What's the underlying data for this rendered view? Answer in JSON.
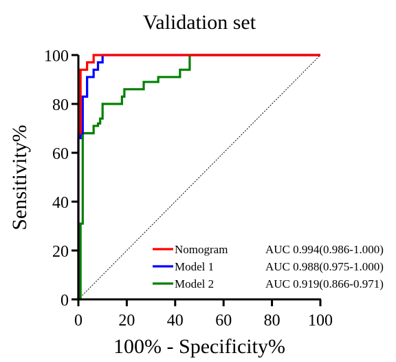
{
  "chart_data": {
    "type": "line",
    "title": "Validation set",
    "xlabel": "100% - Specificity%",
    "ylabel": "Sensitivity%",
    "xlim": [
      0,
      100
    ],
    "ylim": [
      0,
      100
    ],
    "xticks": [
      0,
      20,
      40,
      60,
      80,
      100
    ],
    "yticks": [
      0,
      20,
      40,
      60,
      80,
      100
    ],
    "grid": false,
    "legend_position": "bottom-right",
    "diagonal_reference": true,
    "series": [
      {
        "name": "Nomogram",
        "auc_label": "AUC 0.994(0.986-1.000)",
        "color": "#ff0000",
        "x": [
          0,
          0,
          0.9,
          0.9,
          1.8,
          1.8,
          3.6,
          3.6,
          6.3,
          6.3,
          100
        ],
        "y": [
          0,
          68,
          68,
          94,
          94,
          94,
          94,
          97,
          97,
          100,
          100
        ]
      },
      {
        "name": "Model 1",
        "auc_label": "AUC 0.988(0.975-1.000)",
        "color": "#0000ff",
        "x": [
          0,
          0,
          0.9,
          0.9,
          1.8,
          1.8,
          3.6,
          3.6,
          6.3,
          6.3,
          8.1,
          8.1,
          10,
          10,
          100
        ],
        "y": [
          0,
          66,
          66,
          68,
          68,
          83,
          83,
          91,
          91,
          94,
          94,
          97,
          97,
          100,
          100
        ]
      },
      {
        "name": "Model 2",
        "auc_label": "AUC 0.919(0.866-0.971)",
        "color": "#008000",
        "x": [
          0,
          0.9,
          0.9,
          1.8,
          1.8,
          6.3,
          6.3,
          8.1,
          8.1,
          9.0,
          9.0,
          10,
          10,
          18,
          18,
          19,
          19,
          27,
          27,
          33,
          33,
          42,
          42,
          46,
          46,
          100
        ],
        "y": [
          0,
          0,
          31,
          31,
          68,
          68,
          71,
          71,
          72,
          72,
          74,
          74,
          80,
          80,
          83,
          83,
          86,
          86,
          89,
          89,
          91,
          91,
          94,
          94,
          100,
          100
        ]
      }
    ]
  }
}
